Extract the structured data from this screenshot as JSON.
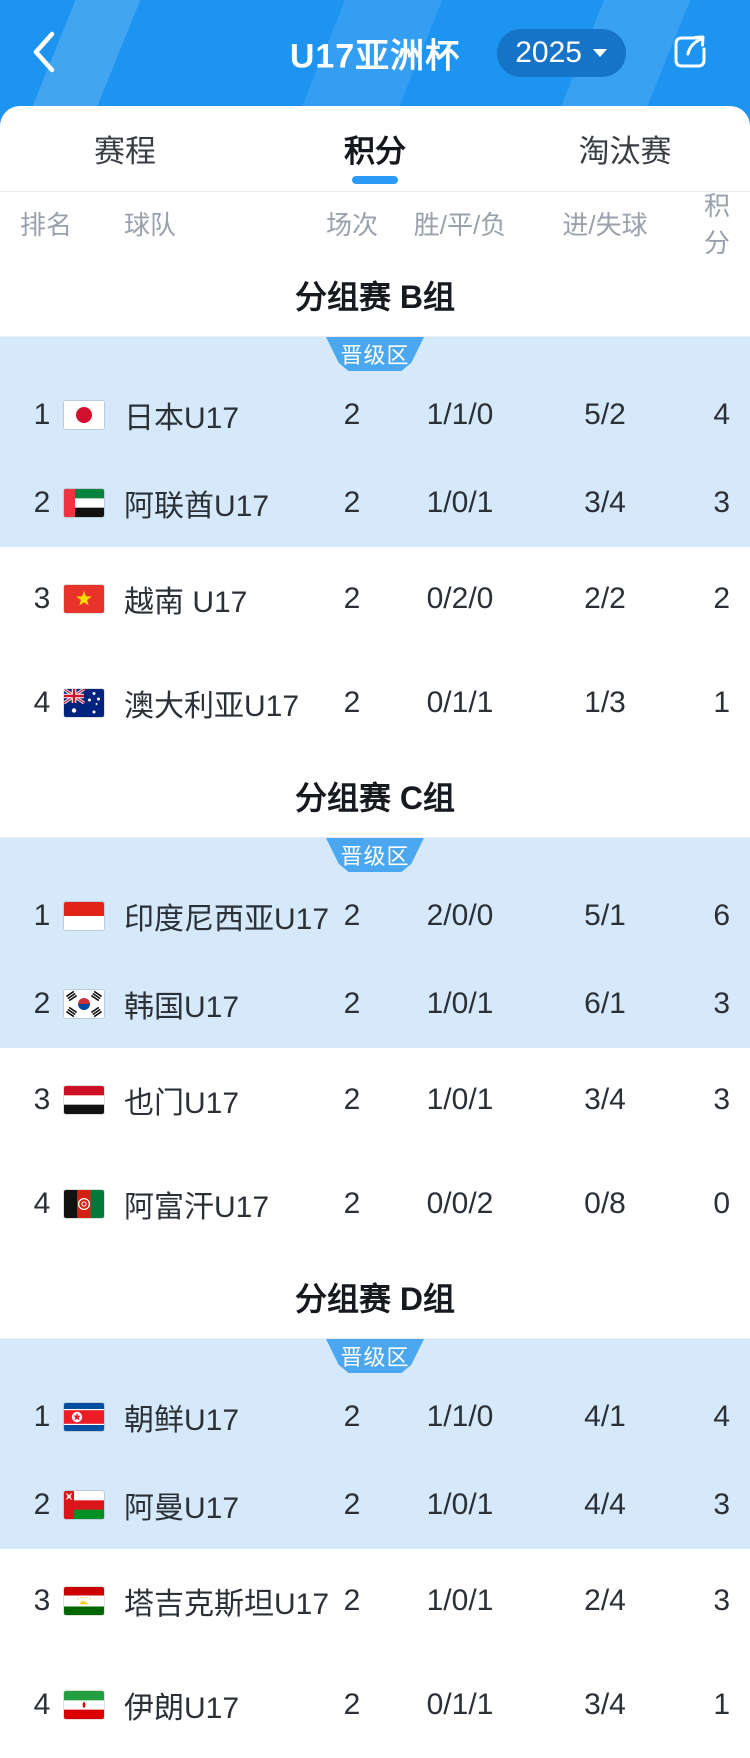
{
  "header": {
    "title": "U17亚洲杯",
    "season": "2025"
  },
  "icons": {
    "back": "chevron-left",
    "season_caret": "triangle-down",
    "share": "box-with-arrow"
  },
  "tabs": [
    {
      "label": "赛程",
      "active": false
    },
    {
      "label": "积分",
      "active": true
    },
    {
      "label": "淘汰赛",
      "active": false
    }
  ],
  "columns": {
    "rank": "排名",
    "team": "球队",
    "played": "场次",
    "wdl": "胜/平/负",
    "goals": "进/失球",
    "points": "积分"
  },
  "promotion_badge": "晋级区",
  "colors": {
    "header_blue": "#1d94f0",
    "pill_blue": "#1573c8",
    "accent_blue": "#2b9bf5",
    "promotion_zone_bg": "#d6e9fa",
    "badge_blue": "#4aa7f0",
    "column_header_gray": "#9aa1ac"
  },
  "groups": [
    {
      "title": "分组赛 B组",
      "teams": [
        {
          "rank": "1",
          "flag": "japan",
          "name": "日本U17",
          "played": "2",
          "wdl": "1/1/0",
          "goals": "5/2",
          "points": "4",
          "promoted": true
        },
        {
          "rank": "2",
          "flag": "uae",
          "name": "阿联酋U17",
          "played": "2",
          "wdl": "1/0/1",
          "goals": "3/4",
          "points": "3",
          "promoted": true
        },
        {
          "rank": "3",
          "flag": "vietnam",
          "name": "越南 U17",
          "played": "2",
          "wdl": "0/2/0",
          "goals": "2/2",
          "points": "2",
          "promoted": false
        },
        {
          "rank": "4",
          "flag": "australia",
          "name": "澳大利亚U17",
          "played": "2",
          "wdl": "0/1/1",
          "goals": "1/3",
          "points": "1",
          "promoted": false
        }
      ]
    },
    {
      "title": "分组赛 C组",
      "teams": [
        {
          "rank": "1",
          "flag": "indonesia",
          "name": "印度尼西亚U17",
          "played": "2",
          "wdl": "2/0/0",
          "goals": "5/1",
          "points": "6",
          "promoted": true
        },
        {
          "rank": "2",
          "flag": "south-korea",
          "name": "韩国U17",
          "played": "2",
          "wdl": "1/0/1",
          "goals": "6/1",
          "points": "3",
          "promoted": true
        },
        {
          "rank": "3",
          "flag": "yemen",
          "name": "也门U17",
          "played": "2",
          "wdl": "1/0/1",
          "goals": "3/4",
          "points": "3",
          "promoted": false
        },
        {
          "rank": "4",
          "flag": "afghanistan",
          "name": "阿富汗U17",
          "played": "2",
          "wdl": "0/0/2",
          "goals": "0/8",
          "points": "0",
          "promoted": false
        }
      ]
    },
    {
      "title": "分组赛 D组",
      "teams": [
        {
          "rank": "1",
          "flag": "north-korea",
          "name": "朝鲜U17",
          "played": "2",
          "wdl": "1/1/0",
          "goals": "4/1",
          "points": "4",
          "promoted": true
        },
        {
          "rank": "2",
          "flag": "oman",
          "name": "阿曼U17",
          "played": "2",
          "wdl": "1/0/1",
          "goals": "4/4",
          "points": "3",
          "promoted": true
        },
        {
          "rank": "3",
          "flag": "tajikistan",
          "name": "塔吉克斯坦U17",
          "played": "2",
          "wdl": "1/0/1",
          "goals": "2/4",
          "points": "3",
          "promoted": false
        },
        {
          "rank": "4",
          "flag": "iran",
          "name": "伊朗U17",
          "played": "2",
          "wdl": "0/1/1",
          "goals": "3/4",
          "points": "1",
          "promoted": false
        }
      ]
    }
  ]
}
